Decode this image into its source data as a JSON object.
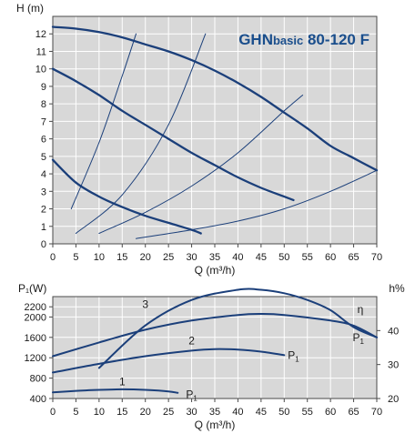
{
  "chart_data": [
    {
      "type": "line",
      "title": "GHNbasic 80-120 F",
      "title_main": "GHN",
      "title_small": "basic",
      "title_tail": " 80-120 F",
      "ylabel": "H (m)",
      "xlabel": "Q (m³/h)",
      "xlim": [
        0,
        70
      ],
      "ylim": [
        0,
        13
      ],
      "x_ticks": [
        "0",
        "5",
        "10",
        "15",
        "20",
        "25",
        "30",
        "35",
        "40",
        "45",
        "50",
        "55",
        "60",
        "65",
        "70"
      ],
      "y_ticks": [
        "0",
        "1",
        "2",
        "3",
        "4",
        "5",
        "6",
        "7",
        "8",
        "9",
        "10",
        "11",
        "12"
      ],
      "grid": true,
      "colors": {
        "plot_bg": "#d8d8d8",
        "grid": "#ffffff",
        "curve": "#1b3f7a",
        "frame": "#4a4a4a"
      },
      "series": [
        {
          "x": [
            0,
            5,
            10,
            15,
            20,
            25,
            30,
            35,
            40,
            45,
            50,
            55,
            60,
            65,
            70
          ],
          "y": [
            12.4,
            12.3,
            12.1,
            11.8,
            11.4,
            11.0,
            10.5,
            9.9,
            9.2,
            8.4,
            7.5,
            6.6,
            5.6,
            4.9,
            4.2
          ]
        },
        {
          "x": [
            0,
            5,
            10,
            15,
            20,
            25,
            30,
            35,
            40,
            45,
            50,
            52
          ],
          "y": [
            10.0,
            9.3,
            8.5,
            7.6,
            6.8,
            6.0,
            5.2,
            4.5,
            3.8,
            3.2,
            2.7,
            2.5
          ]
        },
        {
          "x": [
            0,
            5,
            10,
            15,
            20,
            25,
            30,
            32
          ],
          "y": [
            4.8,
            3.5,
            2.7,
            2.1,
            1.6,
            1.2,
            0.8,
            0.6
          ]
        },
        {
          "x": [
            4,
            10,
            15,
            18
          ],
          "y": [
            2.0,
            5.8,
            9.6,
            12.0
          ],
          "thin": true
        },
        {
          "x": [
            5,
            15,
            25,
            33
          ],
          "y": [
            0.6,
            2.8,
            6.8,
            12.0
          ],
          "thin": true
        },
        {
          "x": [
            10,
            20,
            30,
            40,
            50,
            54
          ],
          "y": [
            0.6,
            1.8,
            3.3,
            5.2,
            7.6,
            8.5
          ],
          "thin": true
        },
        {
          "x": [
            18,
            30,
            40,
            50,
            60,
            70
          ],
          "y": [
            0.3,
            0.8,
            1.3,
            2.0,
            3.0,
            4.2
          ],
          "thin": true
        }
      ]
    },
    {
      "type": "line",
      "ylabel": "P₁(W)",
      "ylabel_right": "h%",
      "xlabel": "Q (m³/h)",
      "xlim": [
        0,
        70
      ],
      "ylim": [
        400,
        2400
      ],
      "y2lim": [
        20,
        50
      ],
      "x_ticks": [
        "0",
        "5",
        "10",
        "15",
        "20",
        "25",
        "30",
        "35",
        "40",
        "45",
        "50",
        "55",
        "60",
        "65",
        "70"
      ],
      "y_ticks": [
        "400",
        "800",
        "1200",
        "1600",
        "2000",
        "2200"
      ],
      "y2_ticks": [
        "20",
        "30",
        "40"
      ],
      "grid": true,
      "colors": {
        "plot_bg": "#d8d8d8",
        "grid": "#ffffff",
        "curve": "#1b3f7a",
        "frame": "#4a4a4a"
      },
      "series": [
        {
          "label": "3",
          "name": "P1 curve 3",
          "x": [
            0,
            10,
            20,
            30,
            40,
            45,
            50,
            60,
            65,
            70
          ],
          "y": [
            1230,
            1500,
            1750,
            1930,
            2040,
            2060,
            2040,
            1930,
            1830,
            1600
          ]
        },
        {
          "label": "2",
          "name": "P1 curve 2",
          "x": [
            0,
            10,
            20,
            30,
            35,
            40,
            45,
            50
          ],
          "y": [
            910,
            1080,
            1230,
            1340,
            1370,
            1360,
            1320,
            1250
          ]
        },
        {
          "label": "1",
          "name": "P1 curve 1",
          "x": [
            0,
            5,
            10,
            15,
            20,
            25,
            27
          ],
          "y": [
            520,
            550,
            570,
            580,
            570,
            540,
            510
          ]
        },
        {
          "label": "η",
          "name": "efficiency",
          "axis": "right",
          "x": [
            10,
            20,
            30,
            40,
            45,
            50,
            55,
            60,
            65,
            70
          ],
          "y": [
            29,
            41.5,
            49,
            52,
            52,
            51,
            49,
            46,
            41,
            38
          ]
        }
      ],
      "annotations": [
        {
          "text": "P",
          "sub": "1",
          "x": 50,
          "y": 1250
        },
        {
          "text": "P",
          "sub": "1",
          "x": 64,
          "y": 1600
        },
        {
          "text": "P",
          "sub": "1",
          "x": 28,
          "y": 480
        },
        {
          "text": "η",
          "x": 65,
          "y": 2150
        }
      ]
    }
  ]
}
